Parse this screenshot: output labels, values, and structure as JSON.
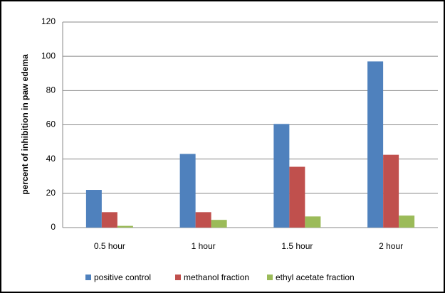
{
  "chart_data": {
    "type": "bar",
    "y_label": "percent of inhibition in paw edema",
    "categories": [
      "0.5 hour",
      "1 hour",
      "1.5 hour",
      "2 hour"
    ],
    "series": [
      {
        "name": "positive control",
        "color": "#4f81bd",
        "values": [
          22,
          43,
          60.5,
          97
        ]
      },
      {
        "name": "methanol fraction",
        "color": "#c0504d",
        "values": [
          9,
          9,
          35.5,
          42.5
        ]
      },
      {
        "name": "ethyl acetate fraction",
        "color": "#9bbb59",
        "values": [
          1,
          4.5,
          6.5,
          7
        ]
      }
    ],
    "ylim": [
      0,
      120
    ],
    "yticks": [
      0,
      20,
      40,
      60,
      80,
      100,
      120
    ],
    "grid": true,
    "legend": "bottom"
  }
}
